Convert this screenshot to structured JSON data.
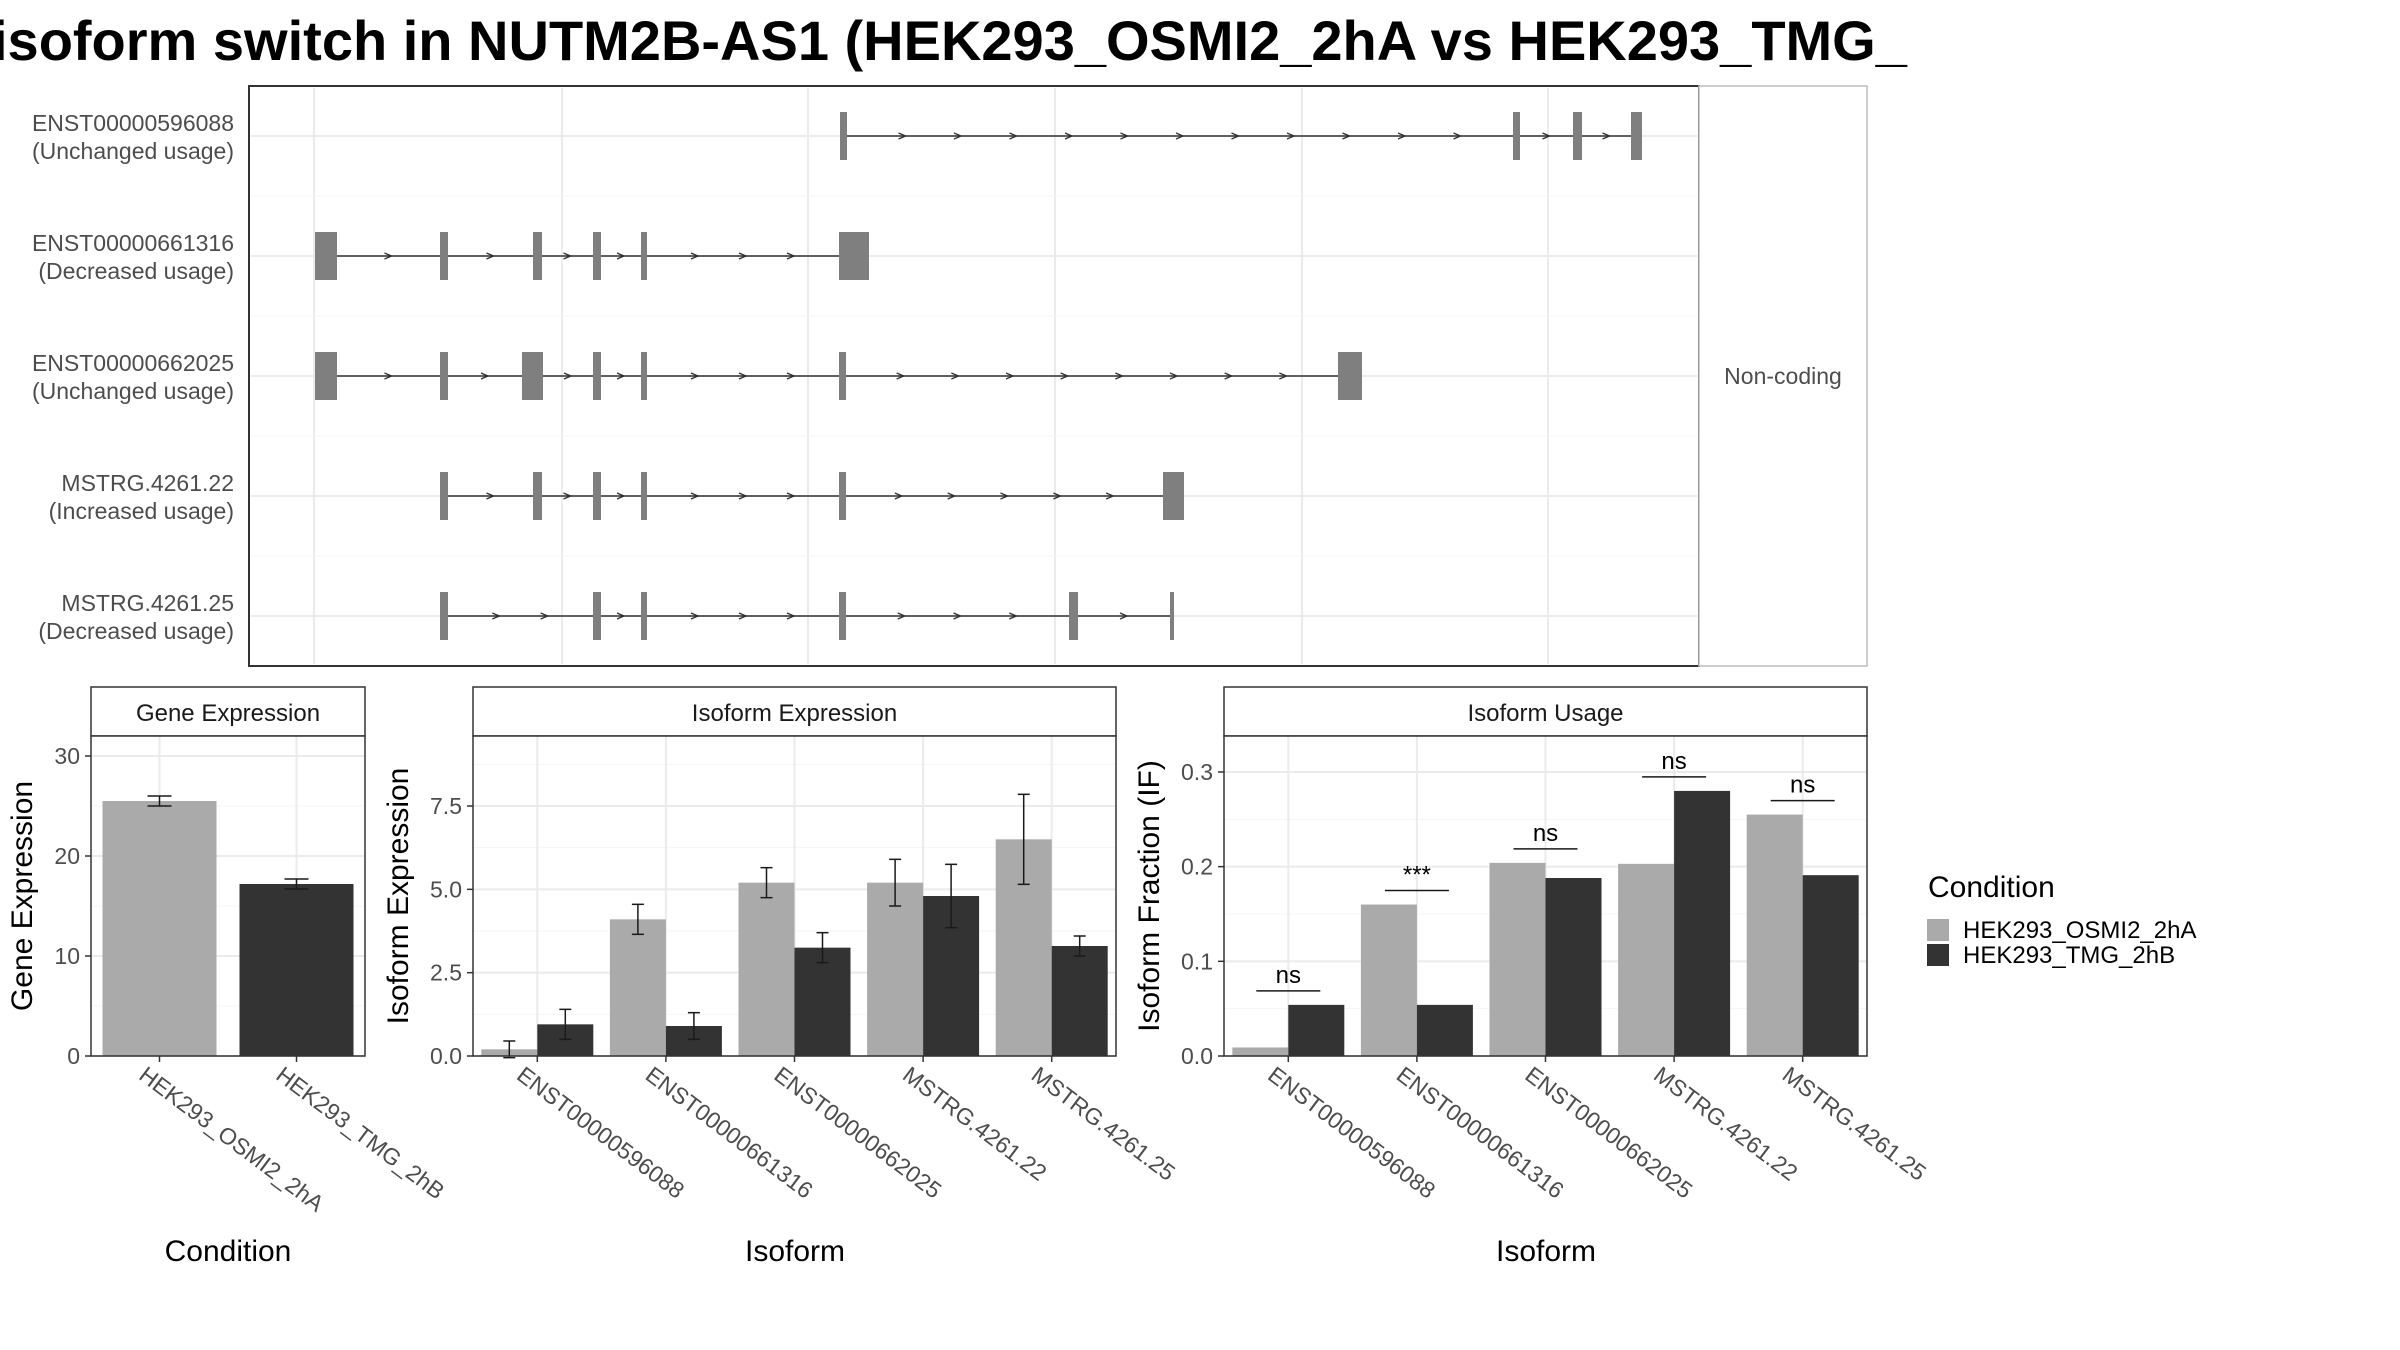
{
  "title": "isoform switch in NUTM2B-AS1 (HEK293_OSMI2_2hA vs HEK293_TMG_",
  "colors": {
    "cond_a": "#aaaaaa",
    "cond_b": "#333333",
    "exon": "#7f7f7f",
    "grid": "#ebebeb",
    "border": "#333333"
  },
  "structure_panel": {
    "side_label": "Non-coding",
    "isoforms": [
      {
        "id": "ENST00000596088",
        "status": "(Unchanged usage)"
      },
      {
        "id": "ENST00000661316",
        "status": "(Decreased usage)"
      },
      {
        "id": "ENST00000662025",
        "status": "(Unchanged usage)"
      },
      {
        "id": "MSTRG.4261.22",
        "status": "(Increased usage)"
      },
      {
        "id": "MSTRG.4261.25",
        "status": "(Decreased usage)"
      }
    ]
  },
  "legend": {
    "title": "Condition",
    "items": [
      {
        "label": "HEK293_OSMI2_2hA",
        "color": "#aaaaaa"
      },
      {
        "label": "HEK293_TMG_2hB",
        "color": "#333333"
      }
    ]
  },
  "chart_data": [
    {
      "type": "bar",
      "title": "Gene Expression",
      "xlabel": "Condition",
      "ylabel": "Gene Expression",
      "categories": [
        "HEK293_OSMI2_2hA",
        "HEK293_TMG_2hB"
      ],
      "values": [
        25.5,
        17.2
      ],
      "errors": [
        0.5,
        0.5
      ],
      "colors": [
        "#aaaaaa",
        "#333333"
      ],
      "ylim": [
        0,
        32
      ],
      "yticks": [
        0,
        10,
        20,
        30
      ]
    },
    {
      "type": "bar",
      "title": "Isoform Expression",
      "xlabel": "Isoform",
      "ylabel": "Isoform Expression",
      "categories": [
        "ENST00000596088",
        "ENST00000661316",
        "ENST00000662025",
        "MSTRG.4261.22",
        "MSTRG.4261.25"
      ],
      "series": [
        {
          "name": "HEK293_OSMI2_2hA",
          "values": [
            0.2,
            4.1,
            5.2,
            5.2,
            6.5
          ],
          "errors": [
            0.25,
            0.45,
            0.45,
            0.7,
            1.35
          ]
        },
        {
          "name": "HEK293_TMG_2hB",
          "values": [
            0.95,
            0.9,
            3.25,
            4.8,
            3.3
          ],
          "errors": [
            0.45,
            0.4,
            0.45,
            0.95,
            0.3
          ]
        }
      ],
      "ylim": [
        0,
        9.6
      ],
      "yticks": [
        "0.0",
        "2.5",
        "5.0",
        "7.5"
      ]
    },
    {
      "type": "bar",
      "title": "Isoform Usage",
      "xlabel": "Isoform",
      "ylabel": "Isoform Fraction (IF)",
      "categories": [
        "ENST00000596088",
        "ENST00000661316",
        "ENST00000662025",
        "MSTRG.4261.22",
        "MSTRG.4261.25"
      ],
      "series": [
        {
          "name": "HEK293_OSMI2_2hA",
          "values": [
            0.009,
            0.16,
            0.204,
            0.203,
            0.255
          ]
        },
        {
          "name": "HEK293_TMG_2hB",
          "values": [
            0.054,
            0.054,
            0.188,
            0.28,
            0.191
          ]
        }
      ],
      "significance": [
        "ns",
        "***",
        "ns",
        "ns",
        "ns"
      ],
      "ylim": [
        0,
        0.338
      ],
      "yticks": [
        "0.0",
        "0.1",
        "0.2",
        "0.3"
      ]
    }
  ]
}
